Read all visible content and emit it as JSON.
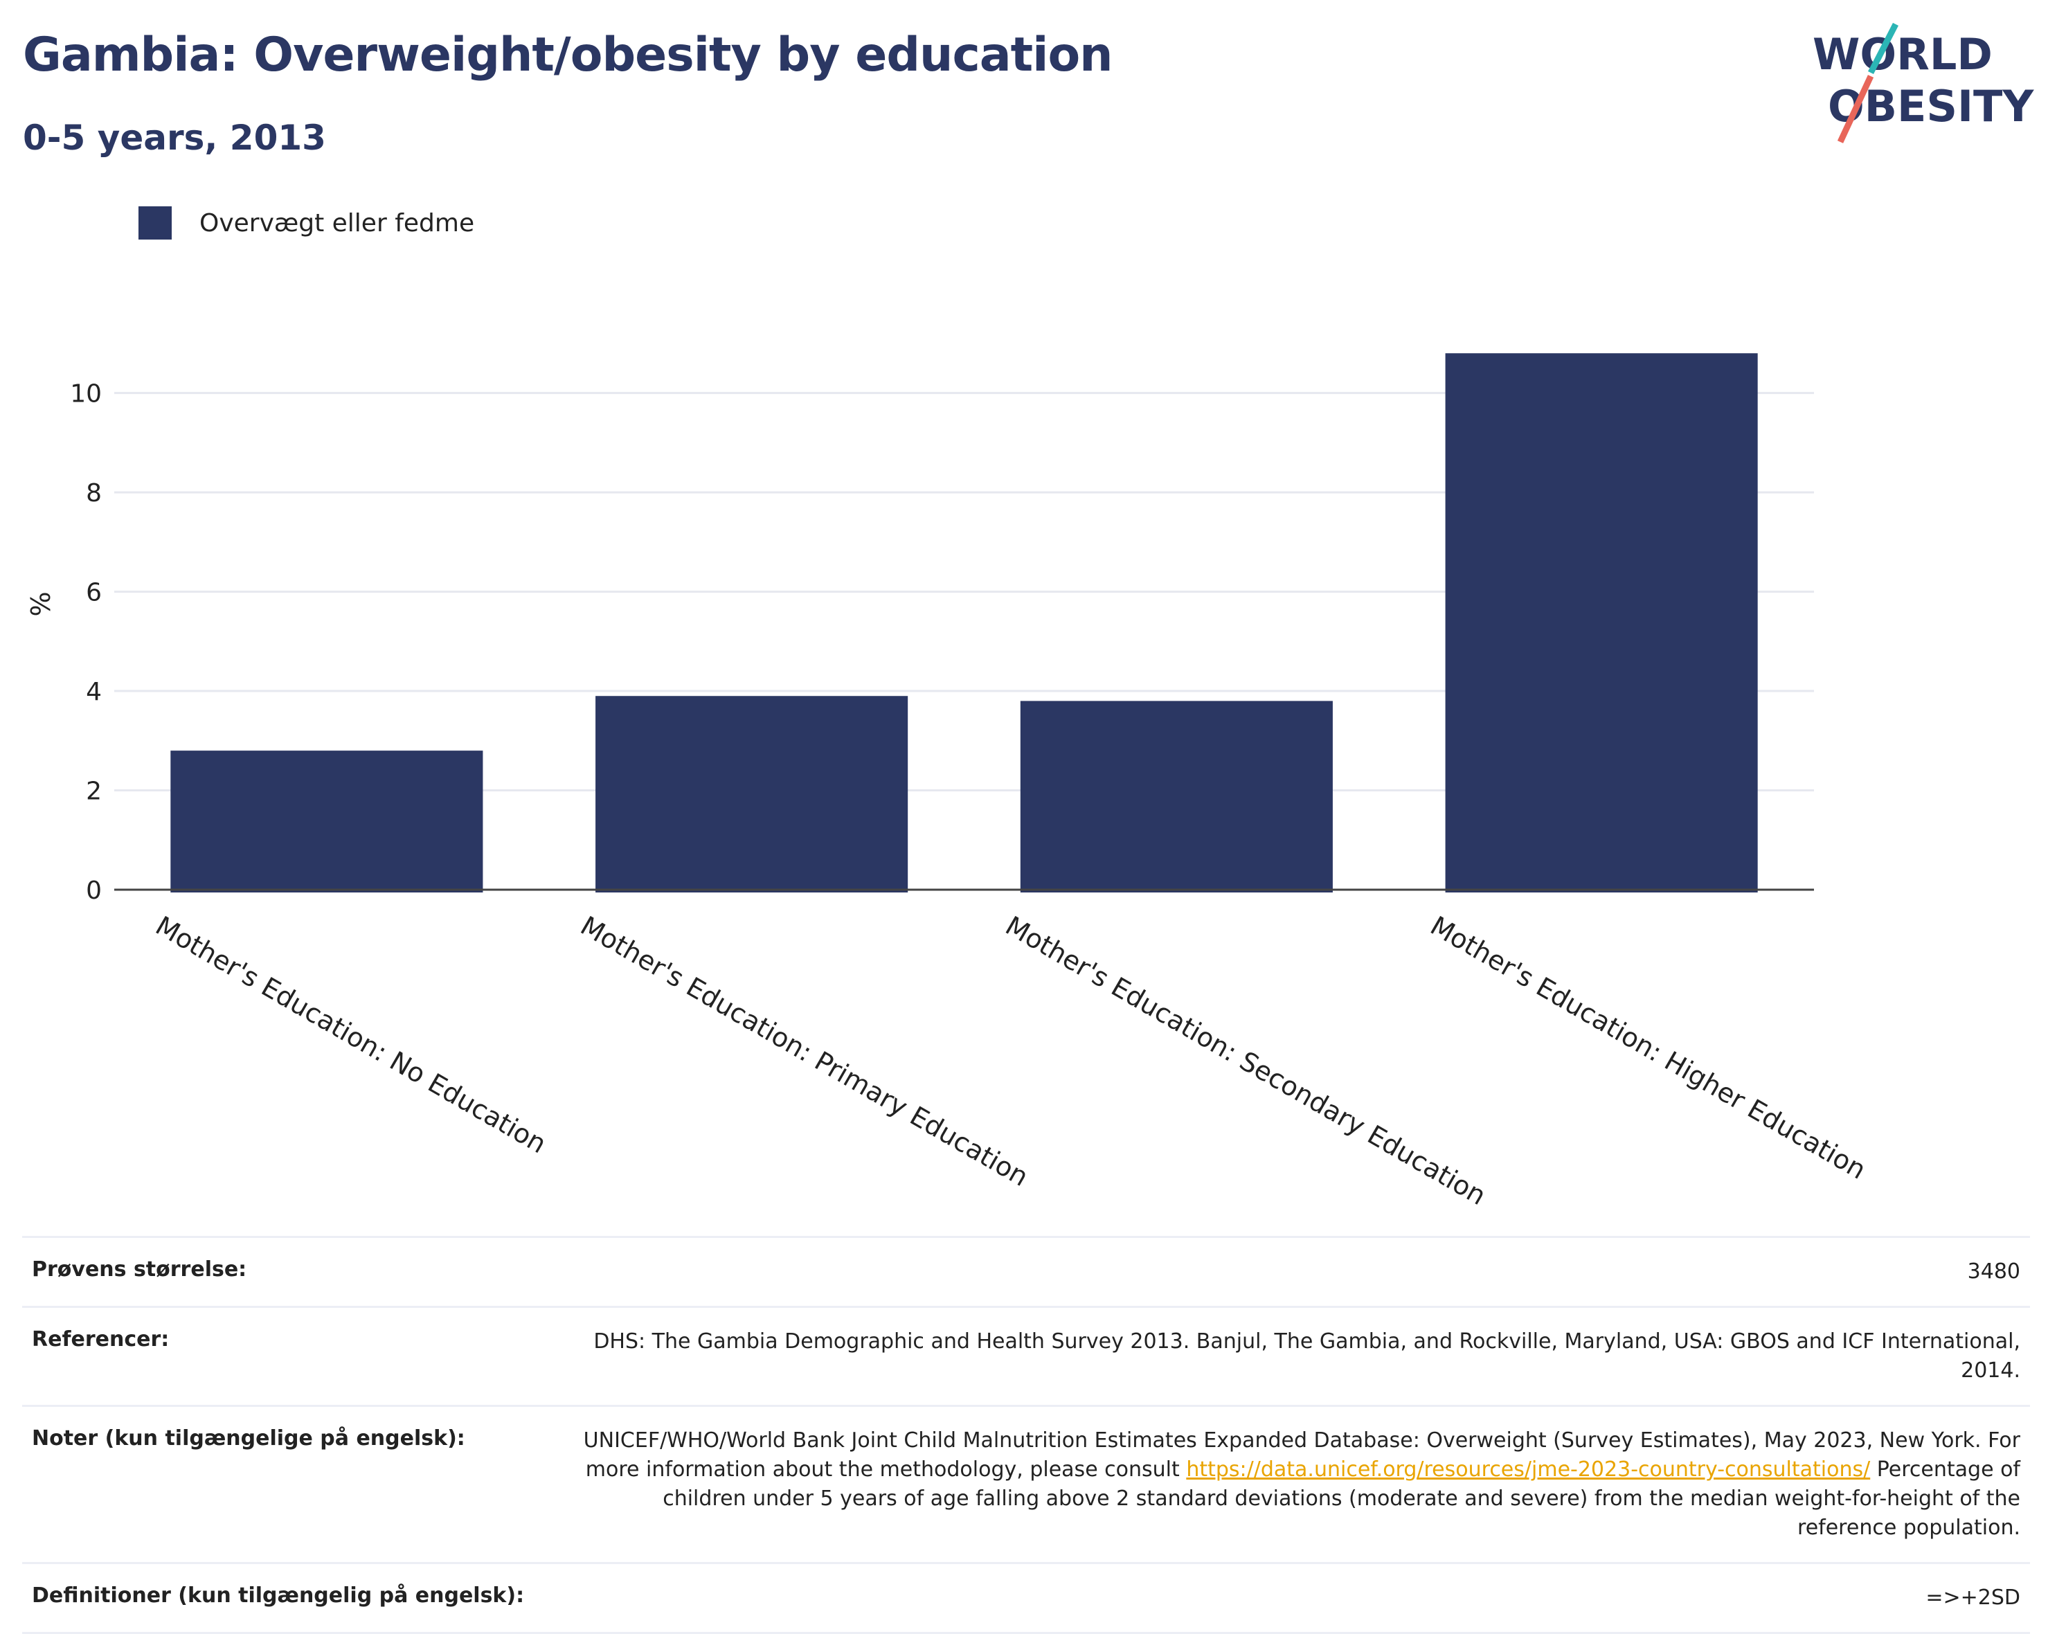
{
  "header": {
    "title": "Gambia: Overweight/obesity by education",
    "subtitle": "0-5 years, 2013"
  },
  "logo": {
    "line1": "WORLD",
    "line2": "OBESITY",
    "accent_teal": "#2bb5b5",
    "accent_red": "#e8665a"
  },
  "legend": {
    "label": "Overvægt eller fedme",
    "color": "#2b3763"
  },
  "chart_data": {
    "type": "bar",
    "categories": [
      "Mother's Education: No Education",
      "Mother's Education: Primary Education",
      "Mother's Education: Secondary Education",
      "Mother's Education: Higher Education"
    ],
    "series": [
      {
        "name": "Overvægt eller fedme",
        "values": [
          2.8,
          3.9,
          3.8,
          10.8
        ]
      }
    ],
    "ylabel": "%",
    "ylim": [
      0,
      11.5
    ],
    "yticks": [
      0,
      2,
      4,
      6,
      8,
      10
    ],
    "grid": true,
    "legend_position": "top-left",
    "bar_color": "#2b3763"
  },
  "meta": {
    "sample_label": "Prøvens størrelse:",
    "sample_value": "3480",
    "refs_label": "Referencer:",
    "refs_value": "DHS: The Gambia Demographic and Health Survey 2013. Banjul, The Gambia, and Rockville, Maryland, USA: GBOS and ICF International, 2014.",
    "notes_label": "Noter (kun tilgængelige på engelsk):",
    "notes_value_pre": "UNICEF/WHO/World Bank Joint Child Malnutrition Estimates Expanded Database: Overweight (Survey Estimates), May 2023, New York. For more information about the methodology, please consult ",
    "notes_link": "https://data.unicef.org/resources/jme-2023-country-consultations/",
    "notes_value_post": " Percentage of children under 5 years of age falling above 2 standard deviations (moderate and severe) from the median weight-for-height of the reference population.",
    "defs_label": "Definitioner (kun tilgængelig på engelsk):",
    "defs_value": "=>+2SD"
  }
}
